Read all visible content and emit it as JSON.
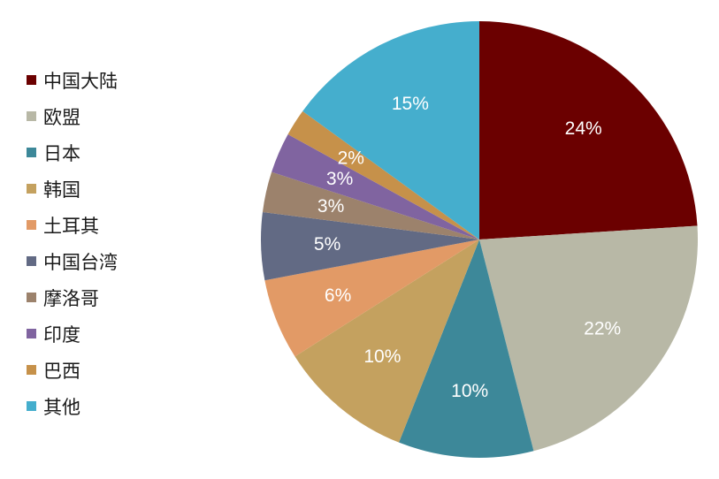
{
  "chart_data": {
    "type": "pie",
    "title": "",
    "legend_position": "left",
    "start_angle_deg": 0,
    "direction": "clockwise",
    "slices": [
      {
        "label": "中国大陆",
        "value": 24,
        "value_label": "24%",
        "color": "#6b0000"
      },
      {
        "label": "欧盟",
        "value": 22,
        "value_label": "22%",
        "color": "#b8b8a6"
      },
      {
        "label": "日本",
        "value": 10,
        "value_label": "10%",
        "color": "#3d8899"
      },
      {
        "label": "韩国",
        "value": 10,
        "value_label": "10%",
        "color": "#c4a15f"
      },
      {
        "label": "土耳其",
        "value": 6,
        "value_label": "6%",
        "color": "#e29a66"
      },
      {
        "label": "中国台湾",
        "value": 5,
        "value_label": "5%",
        "color": "#626a84"
      },
      {
        "label": "摩洛哥",
        "value": 3,
        "value_label": "3%",
        "color": "#9c826c"
      },
      {
        "label": "印度",
        "value": 3,
        "value_label": "3%",
        "color": "#8064a0"
      },
      {
        "label": "巴西",
        "value": 2,
        "value_label": "2%",
        "color": "#c6914a"
      },
      {
        "label": "其他",
        "value": 15,
        "value_label": "15%",
        "color": "#45aecd"
      }
    ]
  }
}
